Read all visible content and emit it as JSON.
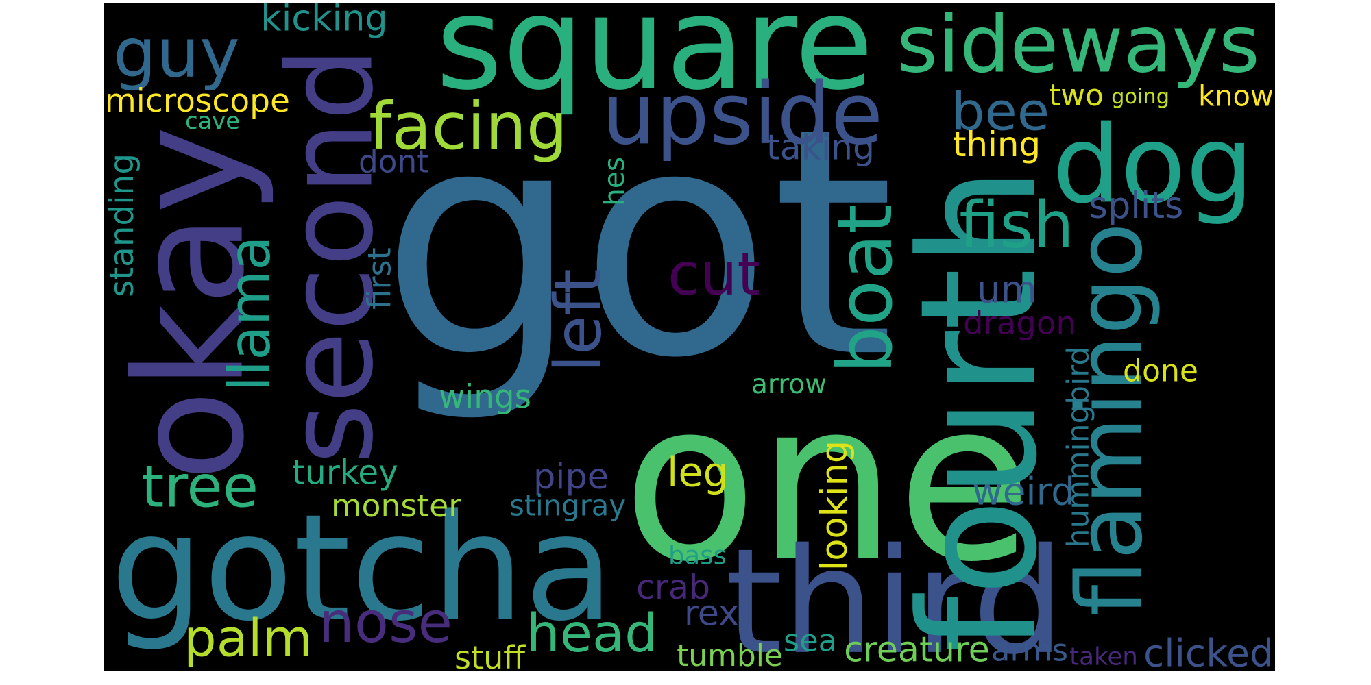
{
  "cloud": {
    "background": "#000000",
    "words": [
      {
        "text": "got",
        "color": "#31688e"
      },
      {
        "text": "one",
        "color": "#4ac16d"
      },
      {
        "text": "square",
        "color": "#2ab07f"
      },
      {
        "text": "gotcha",
        "color": "#2a788e"
      },
      {
        "text": "okay",
        "color": "#433e85"
      },
      {
        "text": "second",
        "color": "#433e85"
      },
      {
        "text": "third",
        "color": "#3b528b"
      },
      {
        "text": "fourth",
        "color": "#21918c"
      },
      {
        "text": "dog",
        "color": "#1fa088"
      },
      {
        "text": "flamingo",
        "color": "#26828e"
      },
      {
        "text": "sideways",
        "color": "#35b779"
      },
      {
        "text": "upside",
        "color": "#3b528b"
      },
      {
        "text": "guy",
        "color": "#31688e"
      },
      {
        "text": "boat",
        "color": "#20a386"
      },
      {
        "text": "facing",
        "color": "#a0da39"
      },
      {
        "text": "fish",
        "color": "#1fa187"
      },
      {
        "text": "llama",
        "color": "#1f9e89"
      },
      {
        "text": "cut",
        "color": "#440154"
      },
      {
        "text": "left",
        "color": "#3b528b"
      },
      {
        "text": "head",
        "color": "#35b779"
      },
      {
        "text": "nose",
        "color": "#472d7b"
      },
      {
        "text": "palm",
        "color": "#b5de2b"
      },
      {
        "text": "tree",
        "color": "#2db27d"
      },
      {
        "text": "bee",
        "color": "#31688e"
      },
      {
        "text": "um",
        "color": "#3b528b"
      },
      {
        "text": "microscope",
        "color": "#fde725"
      },
      {
        "text": "kicking",
        "color": "#21918c"
      },
      {
        "text": "two",
        "color": "#d8e219"
      },
      {
        "text": "going",
        "color": "#c2df23"
      },
      {
        "text": "know",
        "color": "#fde725"
      },
      {
        "text": "thing",
        "color": "#fde725"
      },
      {
        "text": "taking",
        "color": "#3b528b"
      },
      {
        "text": "cave",
        "color": "#2db27d"
      },
      {
        "text": "dont",
        "color": "#3e4989"
      },
      {
        "text": "hes",
        "color": "#2ab07f"
      },
      {
        "text": "standing",
        "color": "#1f968b"
      },
      {
        "text": "first",
        "color": "#2c728e"
      },
      {
        "text": "splits",
        "color": "#3b528b"
      },
      {
        "text": "dragon",
        "color": "#440154"
      },
      {
        "text": "done",
        "color": "#d8e219"
      },
      {
        "text": "wings",
        "color": "#35b779"
      },
      {
        "text": "arrow",
        "color": "#3dbc74"
      },
      {
        "text": "hummingbird",
        "color": "#2a788e"
      },
      {
        "text": "turkey",
        "color": "#25ab82"
      },
      {
        "text": "looking",
        "color": "#dde318"
      },
      {
        "text": "leg",
        "color": "#d0e11c"
      },
      {
        "text": "pipe",
        "color": "#414487"
      },
      {
        "text": "weird",
        "color": "#31688e"
      },
      {
        "text": "monster",
        "color": "#a5db36"
      },
      {
        "text": "stingray",
        "color": "#2a788e"
      },
      {
        "text": "bass",
        "color": "#1f9e89"
      },
      {
        "text": "crab",
        "color": "#482878"
      },
      {
        "text": "rex",
        "color": "#3e4989"
      },
      {
        "text": "sea",
        "color": "#1f9e89"
      },
      {
        "text": "creature",
        "color": "#6ece58"
      },
      {
        "text": "arms",
        "color": "#38588c"
      },
      {
        "text": "tumble",
        "color": "#7ad151"
      },
      {
        "text": "stuff",
        "color": "#c2df23"
      },
      {
        "text": "taken",
        "color": "#482878"
      },
      {
        "text": "clicked",
        "color": "#3b528b"
      }
    ]
  }
}
